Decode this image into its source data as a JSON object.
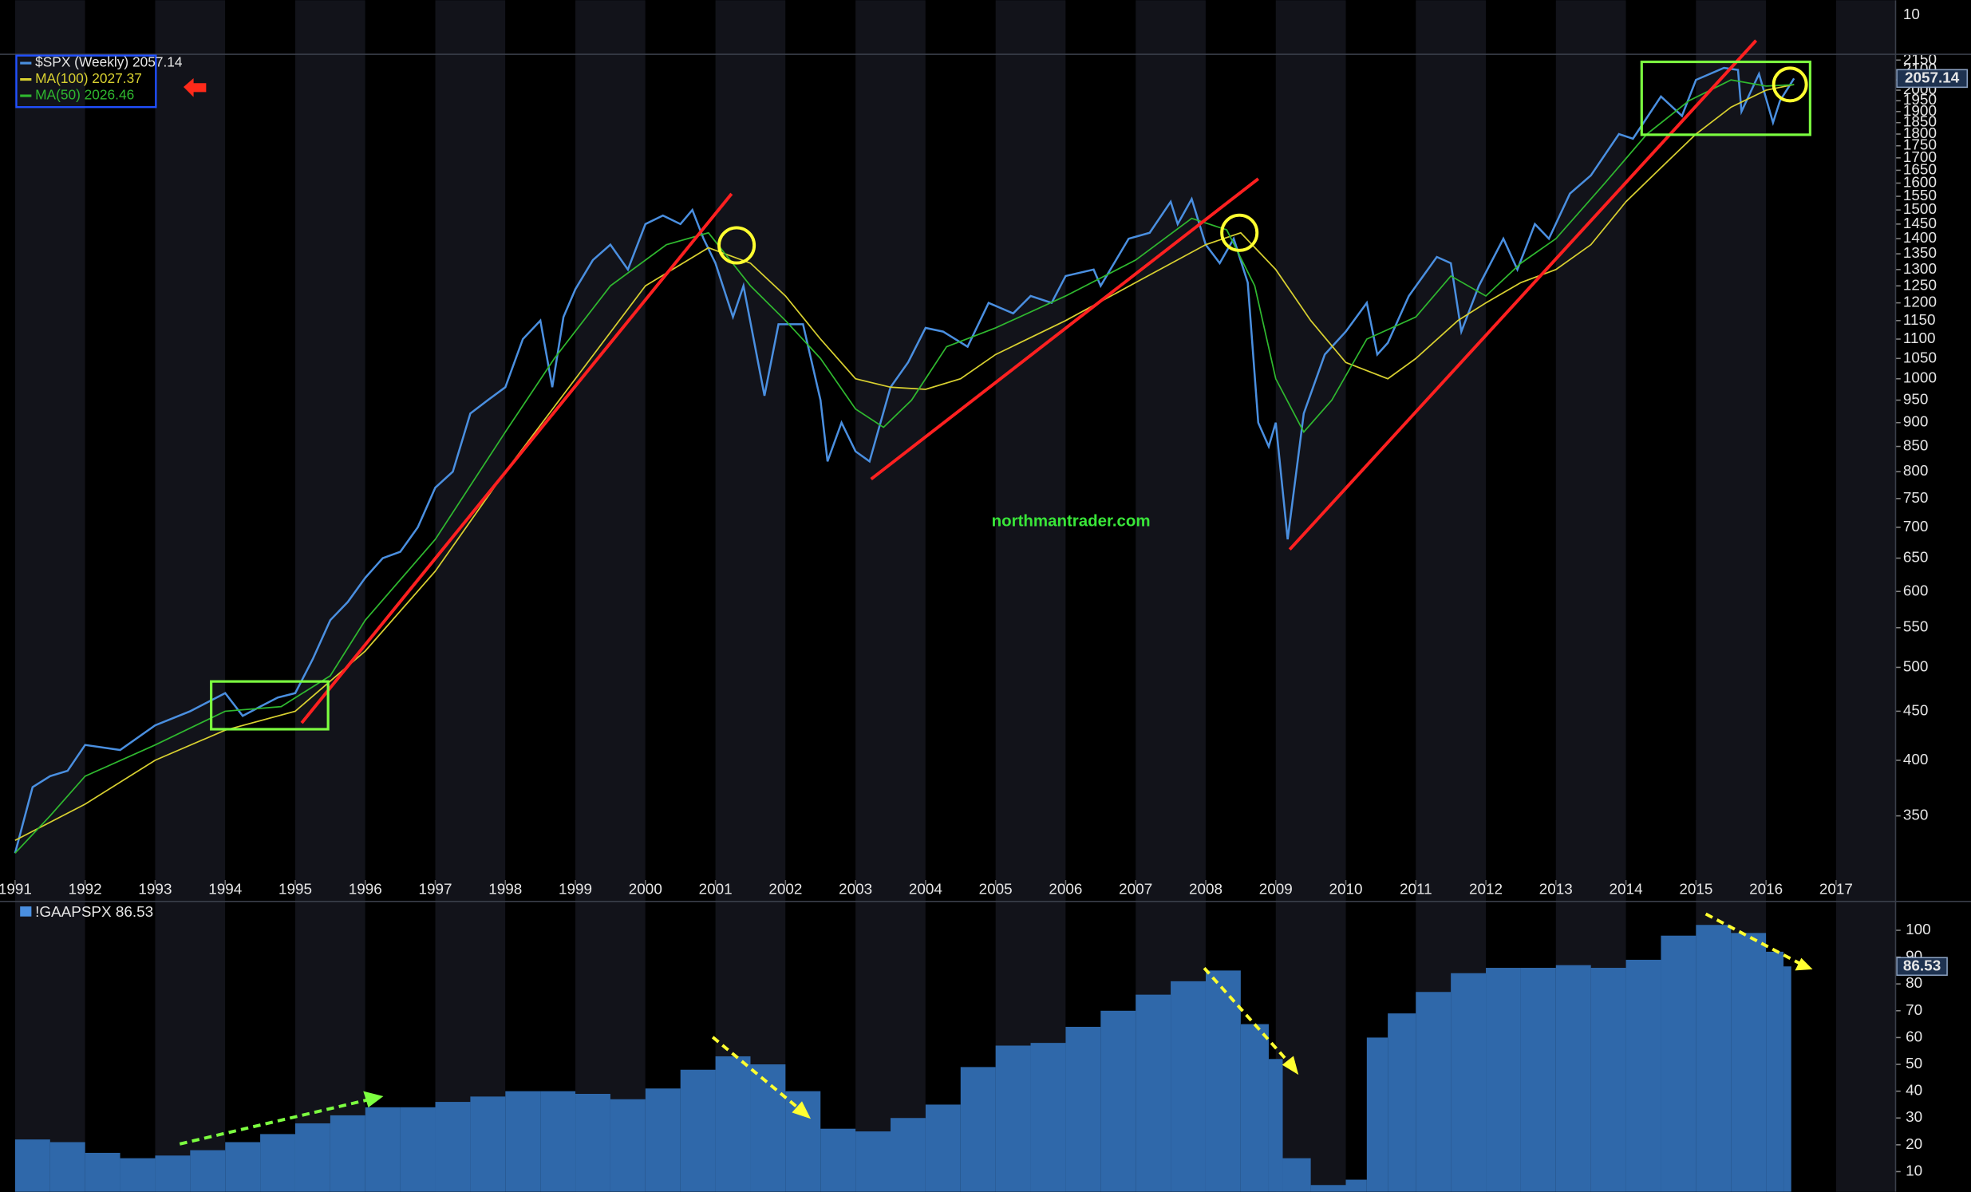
{
  "chart_data": [
    {
      "type": "line",
      "log_scale": true,
      "legend": "top-left",
      "grid": false,
      "top_strip_label": "10",
      "watermark": "northmantrader.com",
      "price_tag": "2057.14",
      "xlim": [
        1991,
        2017.85
      ],
      "xticks": [
        1991,
        1992,
        1993,
        1994,
        1995,
        1996,
        1997,
        1998,
        1999,
        2000,
        2001,
        2002,
        2003,
        2004,
        2005,
        2006,
        2007,
        2008,
        2009,
        2010,
        2011,
        2012,
        2013,
        2014,
        2015,
        2016,
        2017
      ],
      "ylim": [
        300,
        2180
      ],
      "yticks": [
        350,
        400,
        450,
        500,
        550,
        600,
        650,
        700,
        750,
        800,
        850,
        900,
        950,
        1000,
        1050,
        1100,
        1150,
        1200,
        1250,
        1300,
        1350,
        1400,
        1450,
        1500,
        1550,
        1600,
        1650,
        1700,
        1750,
        1800,
        1850,
        1900,
        1950,
        2000,
        2050,
        2100,
        2150
      ],
      "series": [
        {
          "name": "$SPX (Weekly) 2057.14",
          "color": "#4a8fe0",
          "x": [
            1991.0,
            1991.25,
            1991.5,
            1991.75,
            1992.0,
            1992.5,
            1993.0,
            1993.5,
            1994.0,
            1994.25,
            1994.5,
            1994.75,
            1995.0,
            1995.25,
            1995.5,
            1995.75,
            1996.0,
            1996.25,
            1996.5,
            1996.75,
            1997.0,
            1997.25,
            1997.5,
            1997.75,
            1998.0,
            1998.25,
            1998.5,
            1998.67,
            1998.83,
            1999.0,
            1999.25,
            1999.5,
            1999.75,
            2000.0,
            2000.25,
            2000.5,
            2000.67,
            2000.83,
            2001.0,
            2001.25,
            2001.4,
            2001.7,
            2001.9,
            2002.25,
            2002.5,
            2002.6,
            2002.8,
            2003.0,
            2003.2,
            2003.5,
            2003.75,
            2004.0,
            2004.25,
            2004.6,
            2004.9,
            2005.25,
            2005.5,
            2005.8,
            2006.0,
            2006.4,
            2006.5,
            2006.9,
            2007.2,
            2007.5,
            2007.6,
            2007.8,
            2008.0,
            2008.2,
            2008.4,
            2008.6,
            2008.75,
            2008.9,
            2009.0,
            2009.17,
            2009.4,
            2009.7,
            2010.0,
            2010.3,
            2010.45,
            2010.6,
            2010.9,
            2011.3,
            2011.5,
            2011.65,
            2011.9,
            2012.25,
            2012.45,
            2012.7,
            2012.9,
            2013.2,
            2013.5,
            2013.9,
            2014.1,
            2014.5,
            2014.8,
            2015.0,
            2015.4,
            2015.6,
            2015.65,
            2015.9,
            2016.1,
            2016.2,
            2016.4
          ],
          "values": [
            320,
            375,
            385,
            390,
            415,
            410,
            435,
            450,
            470,
            445,
            455,
            465,
            470,
            510,
            560,
            585,
            620,
            650,
            660,
            700,
            770,
            800,
            920,
            950,
            980,
            1100,
            1150,
            980,
            1160,
            1240,
            1330,
            1380,
            1300,
            1450,
            1480,
            1450,
            1500,
            1400,
            1320,
            1160,
            1250,
            960,
            1140,
            1140,
            950,
            820,
            900,
            840,
            820,
            980,
            1040,
            1130,
            1120,
            1080,
            1200,
            1170,
            1220,
            1200,
            1280,
            1300,
            1250,
            1400,
            1420,
            1530,
            1450,
            1540,
            1380,
            1320,
            1400,
            1260,
            900,
            850,
            900,
            680,
            920,
            1060,
            1120,
            1200,
            1060,
            1090,
            1220,
            1340,
            1320,
            1120,
            1250,
            1400,
            1300,
            1450,
            1400,
            1560,
            1630,
            1800,
            1780,
            1970,
            1880,
            2050,
            2110,
            2100,
            1900,
            2080,
            1850,
            1950,
            2057.14
          ]
        },
        {
          "name": "MA(100) 2027.37",
          "color": "#d8d030",
          "x": [
            1991.0,
            1992.0,
            1993.0,
            1994.0,
            1995.0,
            1996.0,
            1997.0,
            1998.0,
            1999.0,
            2000.0,
            2000.9,
            2001.5,
            2002.0,
            2002.5,
            2003.0,
            2003.5,
            2004.0,
            2004.5,
            2005.0,
            2006.0,
            2007.0,
            2008.0,
            2008.5,
            2009.0,
            2009.5,
            2010.0,
            2010.6,
            2011.0,
            2011.6,
            2012.0,
            2012.5,
            2013.0,
            2013.5,
            2014.0,
            2014.5,
            2015.0,
            2015.5,
            2016.0,
            2016.4
          ],
          "values": [
            330,
            360,
            400,
            430,
            450,
            520,
            630,
            800,
            1000,
            1250,
            1370,
            1320,
            1220,
            1100,
            1000,
            980,
            975,
            1000,
            1060,
            1150,
            1260,
            1380,
            1420,
            1300,
            1150,
            1040,
            1000,
            1050,
            1150,
            1200,
            1260,
            1300,
            1380,
            1530,
            1660,
            1800,
            1920,
            2000,
            2027.37
          ]
        },
        {
          "name": "MA(50) 2026.46",
          "color": "#2fb82f",
          "x": [
            1991.0,
            1991.5,
            1992.0,
            1993.0,
            1994.0,
            1994.8,
            1995.5,
            1996.0,
            1997.0,
            1998.0,
            1998.7,
            1999.5,
            2000.3,
            2000.9,
            2001.5,
            2002.0,
            2002.5,
            2003.0,
            2003.4,
            2003.8,
            2004.3,
            2005.0,
            2006.0,
            2007.0,
            2007.8,
            2008.3,
            2008.7,
            2009.0,
            2009.4,
            2009.8,
            2010.3,
            2011.0,
            2011.5,
            2012.0,
            2012.5,
            2013.0,
            2013.7,
            2014.3,
            2014.9,
            2015.5,
            2016.0,
            2016.4
          ],
          "values": [
            320,
            350,
            385,
            415,
            450,
            455,
            490,
            560,
            680,
            880,
            1050,
            1250,
            1380,
            1420,
            1250,
            1150,
            1050,
            930,
            890,
            950,
            1080,
            1130,
            1220,
            1330,
            1470,
            1430,
            1250,
            1000,
            880,
            950,
            1100,
            1160,
            1280,
            1220,
            1320,
            1400,
            1600,
            1800,
            1950,
            2050,
            2020,
            2026.46
          ]
        }
      ]
    },
    {
      "type": "histogram",
      "name": "!GAAPSPX 86.53",
      "color": "#2f68aa",
      "price_tag": "86.53",
      "ylim": [
        2.5,
        110.3
      ],
      "yticks": [
        10,
        20,
        30,
        40,
        50,
        60,
        70,
        80,
        90,
        100
      ],
      "bins": [
        1991.0,
        1991.5,
        1992.0,
        1992.5,
        1993.0,
        1993.5,
        1994.0,
        1994.5,
        1995.0,
        1995.5,
        1996.0,
        1996.5,
        1997.0,
        1997.5,
        1998.0,
        1998.5,
        1999.0,
        1999.5,
        2000.0,
        2000.5,
        2001.0,
        2001.5,
        2002.0,
        2002.5,
        2003.0,
        2003.5,
        2004.0,
        2004.5,
        2005.0,
        2005.5,
        2006.0,
        2006.5,
        2007.0,
        2007.5,
        2008.0,
        2008.5,
        2008.9,
        2009.1,
        2009.5,
        2010.0,
        2010.3,
        2010.6,
        2011.0,
        2011.5,
        2012.0,
        2012.5,
        2013.0,
        2013.5,
        2014.0,
        2014.5,
        2015.0,
        2015.5,
        2016.0,
        2016.25,
        2016.36
      ],
      "values": [
        22,
        21,
        17,
        15,
        16,
        18,
        21,
        24,
        28,
        31,
        34,
        34,
        36,
        38,
        40,
        40,
        39,
        37,
        41,
        48,
        53,
        50,
        40,
        26,
        25,
        30,
        35,
        49,
        57,
        58,
        64,
        70,
        76,
        81,
        85,
        65,
        52,
        15,
        5,
        7,
        60,
        69,
        77,
        84,
        86,
        86,
        87,
        86,
        89,
        98,
        102,
        99,
        92,
        86.53
      ]
    }
  ]
}
